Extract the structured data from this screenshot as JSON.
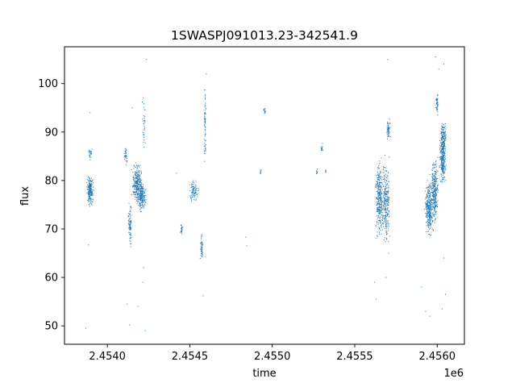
{
  "chart_data": {
    "type": "scatter",
    "title": "1SWASPJ091013.23-342541.9",
    "xlabel": "time",
    "ylabel": "flux",
    "x_offset_label": "1e6",
    "xlim": [
      2453740,
      2456165
    ],
    "ylim": [
      46.2,
      107.6
    ],
    "xticks": [
      2454000,
      2454500,
      2455000,
      2455500,
      2456000
    ],
    "xtick_labels": [
      "2.4540",
      "2.4545",
      "2.4550",
      "2.4555",
      "2.4560"
    ],
    "yticks": [
      50,
      60,
      70,
      80,
      90,
      100
    ],
    "ytick_labels": [
      "50",
      "60",
      "70",
      "80",
      "90",
      "100"
    ],
    "grid": false,
    "marker_color": "#1f77b4",
    "clusters": [
      {
        "x": [
          2453870,
          2453920
        ],
        "y": [
          74.5,
          81.5
        ],
        "n": 220
      },
      {
        "x": [
          2453880,
          2453910
        ],
        "y": [
          83.5,
          87.5
        ],
        "n": 25
      },
      {
        "x": [
          2454100,
          2454125
        ],
        "y": [
          82.5,
          88
        ],
        "n": 35
      },
      {
        "x": [
          2454125,
          2454150
        ],
        "y": [
          65.5,
          76
        ],
        "n": 90
      },
      {
        "x": [
          2454140,
          2454220
        ],
        "y": [
          74,
          84.5
        ],
        "n": 260
      },
      {
        "x": [
          2454175,
          2454240
        ],
        "y": [
          73,
          80.5
        ],
        "n": 200
      },
      {
        "x": [
          2454210,
          2454235
        ],
        "y": [
          84,
          99
        ],
        "n": 30
      },
      {
        "x": [
          2454440,
          2454460
        ],
        "y": [
          68.5,
          71.5
        ],
        "n": 25
      },
      {
        "x": [
          2454490,
          2454560
        ],
        "y": [
          75,
          80.5
        ],
        "n": 90
      },
      {
        "x": [
          2454560,
          2454585
        ],
        "y": [
          63,
          69.5
        ],
        "n": 50
      },
      {
        "x": [
          2454585,
          2454600
        ],
        "y": [
          82,
          101.5
        ],
        "n": 70
      },
      {
        "x": [
          2454925,
          2454935
        ],
        "y": [
          81,
          83
        ],
        "n": 10
      },
      {
        "x": [
          2454945,
          2454960
        ],
        "y": [
          93.5,
          95.5
        ],
        "n": 14
      },
      {
        "x": [
          2455265,
          2455275
        ],
        "y": [
          81,
          83
        ],
        "n": 10
      },
      {
        "x": [
          2455290,
          2455310
        ],
        "y": [
          85.5,
          88.5
        ],
        "n": 14
      },
      {
        "x": [
          2455320,
          2455330
        ],
        "y": [
          81.5,
          82.5
        ],
        "n": 6
      },
      {
        "x": [
          2455620,
          2455680
        ],
        "y": [
          66,
          86
        ],
        "n": 330
      },
      {
        "x": [
          2455660,
          2455720
        ],
        "y": [
          64,
          87
        ],
        "n": 260
      },
      {
        "x": [
          2455690,
          2455720
        ],
        "y": [
          88,
          93
        ],
        "n": 60
      },
      {
        "x": [
          2455920,
          2455980
        ],
        "y": [
          67,
          82
        ],
        "n": 330
      },
      {
        "x": [
          2455960,
          2456010
        ],
        "y": [
          69,
          86.5
        ],
        "n": 280
      },
      {
        "x": [
          2455990,
          2456010
        ],
        "y": [
          93,
          99
        ],
        "n": 50
      },
      {
        "x": [
          2456010,
          2456060
        ],
        "y": [
          78,
          91.5
        ],
        "n": 300
      },
      {
        "x": [
          2456015,
          2456060
        ],
        "y": [
          86,
          93
        ],
        "n": 100
      }
    ],
    "outliers": [
      [
        2453870,
        49.5
      ],
      [
        2453885,
        66.7
      ],
      [
        2453895,
        94
      ],
      [
        2454135,
        50.2
      ],
      [
        2454120,
        54.5
      ],
      [
        2454185,
        54
      ],
      [
        2454230,
        49
      ],
      [
        2454235,
        105
      ],
      [
        2454150,
        95
      ],
      [
        2454215,
        59
      ],
      [
        2454220,
        62
      ],
      [
        2454420,
        81.5
      ],
      [
        2454580,
        56.2
      ],
      [
        2454600,
        102
      ],
      [
        2454840,
        68.3
      ],
      [
        2454845,
        66.5
      ],
      [
        2455620,
        59
      ],
      [
        2455630,
        55.5
      ],
      [
        2455690,
        60
      ],
      [
        2455700,
        105
      ],
      [
        2455705,
        65
      ],
      [
        2455905,
        58
      ],
      [
        2455930,
        53
      ],
      [
        2455955,
        52
      ],
      [
        2456030,
        53.5
      ],
      [
        2456050,
        56.5
      ],
      [
        2456040,
        64
      ],
      [
        2455990,
        105.5
      ],
      [
        2456010,
        103
      ],
      [
        2456040,
        104
      ]
    ]
  }
}
